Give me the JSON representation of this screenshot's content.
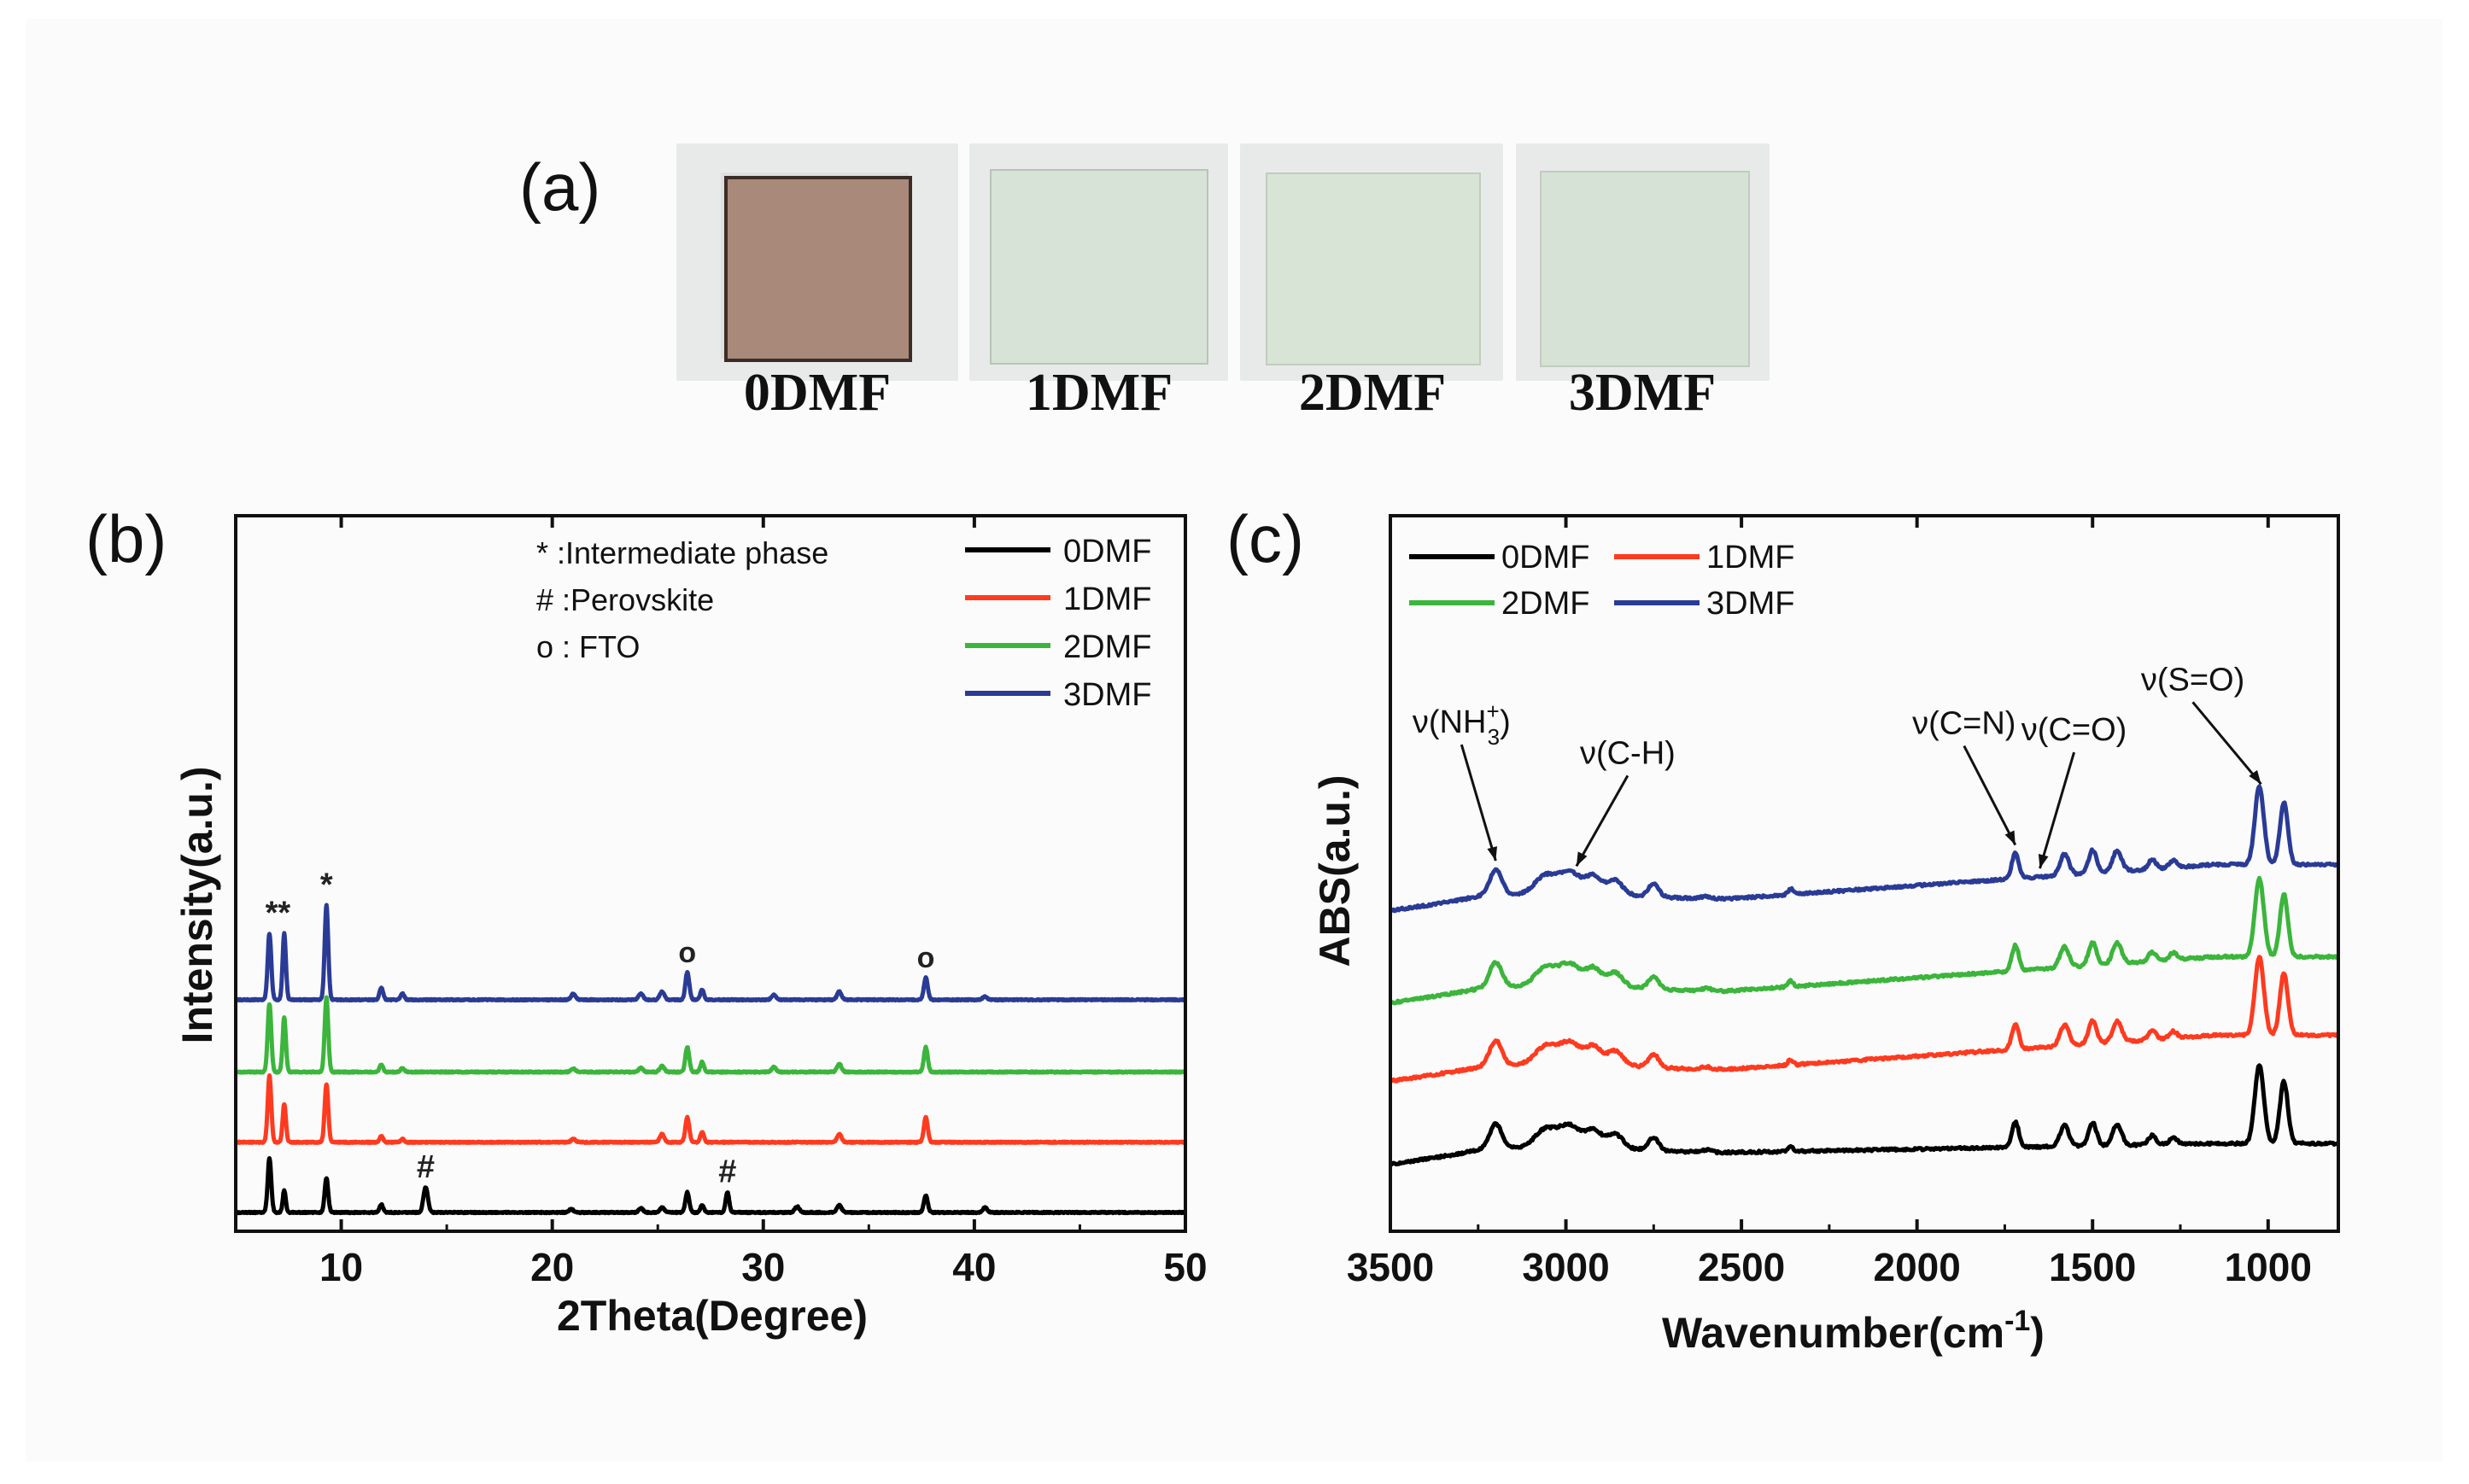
{
  "panel_labels": {
    "a": "(a)",
    "b": "(b)",
    "c": "(c)"
  },
  "photos": [
    {
      "label": "0DMF",
      "film_color": "#a98979"
    },
    {
      "label": "1DMF",
      "film_color": "#d6e3d6"
    },
    {
      "label": "2DMF",
      "film_color": "#d8e4d6"
    },
    {
      "label": "3DMF",
      "film_color": "#d6e2d6"
    }
  ],
  "chart_data": [
    {
      "id": "xrd",
      "type": "line",
      "xlabel": "2Theta(Degree)",
      "ylabel": "Intensity(a.u.)",
      "xlim": [
        5,
        50
      ],
      "xticks": [
        10,
        20,
        30,
        40,
        50
      ],
      "annotation_legend": [
        "* :Intermediate phase",
        "# :Perovskite",
        "o : FTO"
      ],
      "series": [
        {
          "name": "0DMF",
          "color": "#000000",
          "baseline": 0.0,
          "peaks": [
            [
              6.6,
              1.35,
              0.12
            ],
            [
              7.3,
              0.55,
              0.1
            ],
            [
              9.3,
              0.85,
              0.12
            ],
            [
              11.9,
              0.2,
              0.12
            ],
            [
              14.0,
              0.62,
              0.15
            ],
            [
              20.9,
              0.08,
              0.15
            ],
            [
              24.2,
              0.1,
              0.15
            ],
            [
              25.2,
              0.12,
              0.15
            ],
            [
              26.4,
              0.5,
              0.13
            ],
            [
              27.1,
              0.18,
              0.12
            ],
            [
              28.3,
              0.5,
              0.12
            ],
            [
              31.6,
              0.15,
              0.15
            ],
            [
              33.6,
              0.18,
              0.15
            ],
            [
              37.7,
              0.42,
              0.13
            ],
            [
              40.5,
              0.12,
              0.15
            ]
          ]
        },
        {
          "name": "1DMF",
          "color": "#ff3a1f",
          "baseline": 1.75,
          "peaks": [
            [
              6.6,
              1.65,
              0.12
            ],
            [
              7.3,
              0.95,
              0.11
            ],
            [
              9.3,
              1.45,
              0.12
            ],
            [
              11.9,
              0.15,
              0.12
            ],
            [
              12.9,
              0.08,
              0.12
            ],
            [
              21.0,
              0.08,
              0.15
            ],
            [
              25.2,
              0.2,
              0.15
            ],
            [
              26.4,
              0.62,
              0.13
            ],
            [
              27.1,
              0.25,
              0.12
            ],
            [
              33.6,
              0.2,
              0.15
            ],
            [
              37.7,
              0.62,
              0.13
            ]
          ]
        },
        {
          "name": "2DMF",
          "color": "#3bb53b",
          "baseline": 3.5,
          "peaks": [
            [
              6.6,
              1.7,
              0.12
            ],
            [
              7.3,
              1.35,
              0.11
            ],
            [
              9.3,
              1.85,
              0.12
            ],
            [
              11.9,
              0.18,
              0.12
            ],
            [
              12.9,
              0.1,
              0.12
            ],
            [
              21.0,
              0.08,
              0.15
            ],
            [
              24.2,
              0.1,
              0.15
            ],
            [
              25.2,
              0.15,
              0.15
            ],
            [
              26.4,
              0.62,
              0.13
            ],
            [
              27.1,
              0.25,
              0.12
            ],
            [
              30.5,
              0.12,
              0.15
            ],
            [
              33.6,
              0.2,
              0.15
            ],
            [
              37.7,
              0.62,
              0.13
            ]
          ]
        },
        {
          "name": "3DMF",
          "color": "#2a3b96",
          "baseline": 5.3,
          "peaks": [
            [
              6.6,
              1.65,
              0.12
            ],
            [
              7.3,
              1.65,
              0.11
            ],
            [
              9.3,
              2.35,
              0.12
            ],
            [
              11.9,
              0.3,
              0.12
            ],
            [
              12.9,
              0.15,
              0.12
            ],
            [
              21.0,
              0.15,
              0.15
            ],
            [
              24.2,
              0.15,
              0.15
            ],
            [
              25.2,
              0.2,
              0.15
            ],
            [
              26.4,
              0.68,
              0.13
            ],
            [
              27.1,
              0.25,
              0.12
            ],
            [
              30.5,
              0.12,
              0.15
            ],
            [
              33.6,
              0.2,
              0.15
            ],
            [
              37.7,
              0.55,
              0.13
            ],
            [
              40.5,
              0.08,
              0.15
            ]
          ]
        }
      ],
      "peak_marks": [
        {
          "symbol": "**",
          "x": 7.0,
          "series": "3DMF"
        },
        {
          "symbol": "*",
          "x": 9.3,
          "series": "3DMF"
        },
        {
          "symbol": "o",
          "x": 26.4,
          "series": "3DMF"
        },
        {
          "symbol": "o",
          "x": 37.7,
          "series": "3DMF"
        },
        {
          "symbol": "#",
          "x": 14.0,
          "series": "0DMF"
        },
        {
          "symbol": "#",
          "x": 28.3,
          "series": "0DMF"
        }
      ]
    },
    {
      "id": "ftir",
      "type": "line",
      "xlabel": "Wavenumber(cm",
      "xlabel_superscript": "-1",
      "xlabel_close": ")",
      "ylabel": "ABS(a.u.)",
      "xlim": [
        3500,
        800
      ],
      "xticks": [
        3500,
        3000,
        2500,
        2000,
        1500,
        1000
      ],
      "annotations": [
        {
          "text": "ν(NH",
          "sub": "3",
          "sup": "+",
          "close": ")",
          "x": 3200
        },
        {
          "text": "ν(C-H)",
          "x": 2970
        },
        {
          "text": "ν(C=N)",
          "x": 1720
        },
        {
          "text": "ν(C=O)",
          "x": 1650
        },
        {
          "text": "ν(S=O)",
          "x": 1020
        }
      ],
      "series": [
        {
          "name": "0DMF",
          "color": "#000000",
          "baseline": 0.0
        },
        {
          "name": "1DMF",
          "color": "#ff3a1f",
          "baseline": 1.8
        },
        {
          "name": "2DMF",
          "color": "#3bb53b",
          "baseline": 3.5
        },
        {
          "name": "3DMF",
          "color": "#2a3b96",
          "baseline": 5.5
        }
      ],
      "bands": [
        [
          3200,
          0.55,
          25
        ],
        [
          3060,
          0.35,
          40
        ],
        [
          2990,
          0.45,
          45
        ],
        [
          2920,
          0.35,
          30
        ],
        [
          2860,
          0.3,
          30
        ],
        [
          2750,
          0.28,
          20
        ],
        [
          2600,
          0.05,
          20
        ],
        [
          2360,
          0.12,
          10
        ],
        [
          1720,
          0.55,
          14
        ],
        [
          1580,
          0.45,
          18
        ],
        [
          1500,
          0.5,
          16
        ],
        [
          1430,
          0.45,
          18
        ],
        [
          1330,
          0.2,
          15
        ],
        [
          1270,
          0.15,
          15
        ],
        [
          1025,
          1.7,
          18
        ],
        [
          955,
          1.35,
          16
        ]
      ]
    }
  ]
}
